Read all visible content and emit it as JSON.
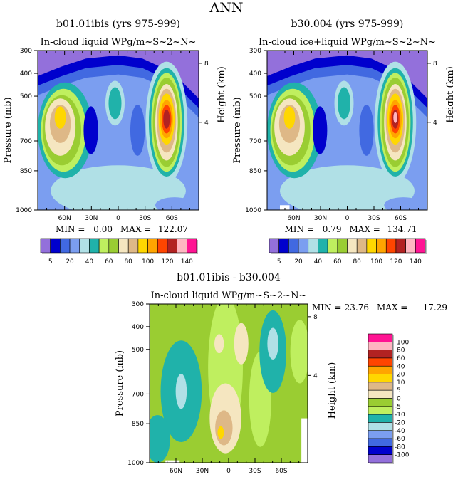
{
  "figure_title": "ANN",
  "palette": [
    "#9370DB",
    "#0000CD",
    "#4169E1",
    "#7B9EF0",
    "#B0E0E6",
    "#20B2AA",
    "#BFEF5F",
    "#9ACD32",
    "#F5E6C0",
    "#DEB887",
    "#FFD700",
    "#FFA500",
    "#FF4500",
    "#B22222",
    "#FFB6C1",
    "#FF1493"
  ],
  "chart_data": [
    {
      "type": "heatmap",
      "title": "b01.01ibis (yrs 975-999)",
      "subtitle": "In-cloud liquid WPg/m~S~2~N~",
      "ylabel": "Pressure (mb)",
      "ylabel_right": "Height (km)",
      "yticks": [
        "300",
        "400",
        "500",
        "700",
        "850",
        "1000"
      ],
      "yticks_right": [
        "8",
        "4"
      ],
      "xticks": [
        "60N",
        "30N",
        "0",
        "30S",
        "60S"
      ],
      "min_label": "MIN =",
      "min_value": "0.00",
      "max_label": "MAX =",
      "max_value": "122.07",
      "colorbar_labels": [
        "5",
        "20",
        "40",
        "60",
        "80",
        "100",
        "120",
        "140"
      ]
    },
    {
      "type": "heatmap",
      "title": "b30.004 (yrs 975-999)",
      "subtitle": "In-cloud ice+liquid WPg/m~S~2~N~",
      "ylabel": "Pressure (mb)",
      "ylabel_right": "Height (km)",
      "yticks": [
        "300",
        "400",
        "500",
        "700",
        "850",
        "1000"
      ],
      "yticks_right": [
        "8",
        "4"
      ],
      "xticks": [
        "60N",
        "30N",
        "0",
        "30S",
        "60S"
      ],
      "min_label": "MIN =",
      "min_value": "0.79",
      "max_label": "MAX =",
      "max_value": "134.71",
      "colorbar_labels": [
        "5",
        "20",
        "40",
        "60",
        "80",
        "100",
        "120",
        "140"
      ]
    },
    {
      "type": "heatmap",
      "title": "b01.01ibis - b30.004",
      "subtitle": "In-cloud liquid WPg/m~S~2~N~",
      "ylabel": "Pressure (mb)",
      "ylabel_right": "Height (km)",
      "yticks": [
        "300",
        "400",
        "500",
        "700",
        "850",
        "1000"
      ],
      "yticks_right": [
        "8",
        "4"
      ],
      "xticks": [
        "60N",
        "30N",
        "0",
        "30S",
        "60S"
      ],
      "min_label": "MIN =",
      "min_value": "-23.76",
      "max_label": "MAX =",
      "max_value": "17.29",
      "colorbar_labels": [
        "100",
        "80",
        "60",
        "40",
        "20",
        "10",
        "5",
        "0",
        "-5",
        "-10",
        "-20",
        "-40",
        "-60",
        "-80",
        "-100"
      ]
    }
  ]
}
